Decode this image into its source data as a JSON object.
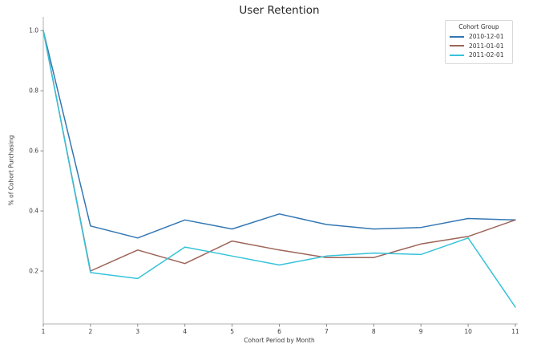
{
  "chart_data": {
    "type": "line",
    "title": "User Retention",
    "xlabel": "Cohort Period by Month",
    "ylabel": "% of Cohort Purchasing",
    "grid": false,
    "legend": {
      "title": "Cohort Group",
      "position": "upper right"
    },
    "x": [
      1,
      2,
      3,
      4,
      5,
      6,
      7,
      8,
      9,
      10,
      11
    ],
    "x_tick_labels": [
      "1",
      "2",
      "3",
      "4",
      "5",
      "6",
      "7",
      "8",
      "9",
      "10",
      "11"
    ],
    "y_ticks": [
      0.2,
      0.4,
      0.6,
      0.8,
      1.0
    ],
    "y_tick_labels": [
      "0.2",
      "0.4",
      "0.6",
      "0.8",
      "1.0"
    ],
    "xlim": [
      1,
      11
    ],
    "ylim": [
      0.024,
      1.046
    ],
    "series": [
      {
        "name": "2010-12-01",
        "color": "#3377b4",
        "values": [
          1.0,
          0.35,
          0.31,
          0.37,
          0.34,
          0.39,
          0.355,
          0.34,
          0.345,
          0.375,
          0.37
        ]
      },
      {
        "name": "2011-01-01",
        "color": "#9d6458",
        "values": [
          1.0,
          0.2,
          0.27,
          0.225,
          0.3,
          0.27,
          0.245,
          0.245,
          0.29,
          0.315,
          0.37
        ]
      },
      {
        "name": "2011-02-01",
        "color": "#36c3d8",
        "values": [
          1.0,
          0.195,
          0.175,
          0.28,
          0.25,
          0.22,
          0.25,
          0.26,
          0.255,
          0.31,
          0.08
        ]
      }
    ],
    "colors": {
      "axis": "#b0b0b0",
      "tick": "#8a8a8a",
      "tick_label": "#3b3b3b",
      "title": "#262626"
    }
  }
}
